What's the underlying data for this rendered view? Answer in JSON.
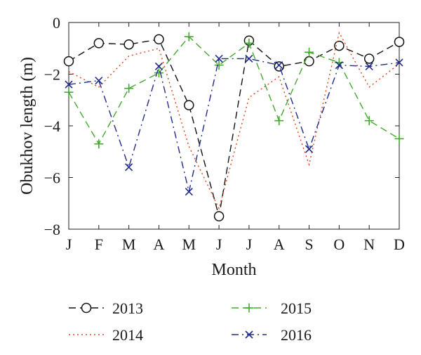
{
  "chart_data": {
    "type": "line",
    "xlabel": "Month",
    "ylabel": "Obukhov length (m)",
    "categories": [
      "J",
      "F",
      "M",
      "A",
      "M",
      "J",
      "J",
      "A",
      "S",
      "O",
      "N",
      "D"
    ],
    "ylim": [
      -8,
      0
    ],
    "yticks": [
      0,
      -2,
      -4,
      -6,
      -8
    ],
    "yticklabels": [
      "0",
      "−2",
      "−4",
      "−6",
      "−8"
    ],
    "grid": false,
    "legend_position": "bottom",
    "series": [
      {
        "name": "2013",
        "color": "#111111",
        "dash": "dashed",
        "marker": "circle",
        "values": [
          -1.5,
          -0.8,
          -0.85,
          -0.65,
          -3.2,
          -7.5,
          -0.7,
          -1.7,
          -1.5,
          -0.9,
          -1.4,
          -0.75
        ]
      },
      {
        "name": "2014",
        "color": "#e0441c",
        "dash": "dotted",
        "marker": "none",
        "values": [
          -1.9,
          -2.5,
          -1.3,
          -1.0,
          -4.8,
          -7.2,
          -2.9,
          -2.1,
          -5.5,
          -0.4,
          -2.5,
          -1.6
        ]
      },
      {
        "name": "2015",
        "color": "#43a82e",
        "dash": "dashed",
        "marker": "plus",
        "values": [
          -2.7,
          -4.7,
          -2.55,
          -1.95,
          -0.55,
          -1.65,
          -0.8,
          -3.8,
          -1.15,
          -1.55,
          -3.8,
          -4.5
        ]
      },
      {
        "name": "2016",
        "color": "#1f2a8a",
        "dash": "dashdot",
        "marker": "x",
        "values": [
          -2.4,
          -2.25,
          -5.6,
          -1.7,
          -6.55,
          -1.4,
          -1.4,
          -1.65,
          -4.9,
          -1.65,
          -1.7,
          -1.55
        ]
      }
    ]
  }
}
